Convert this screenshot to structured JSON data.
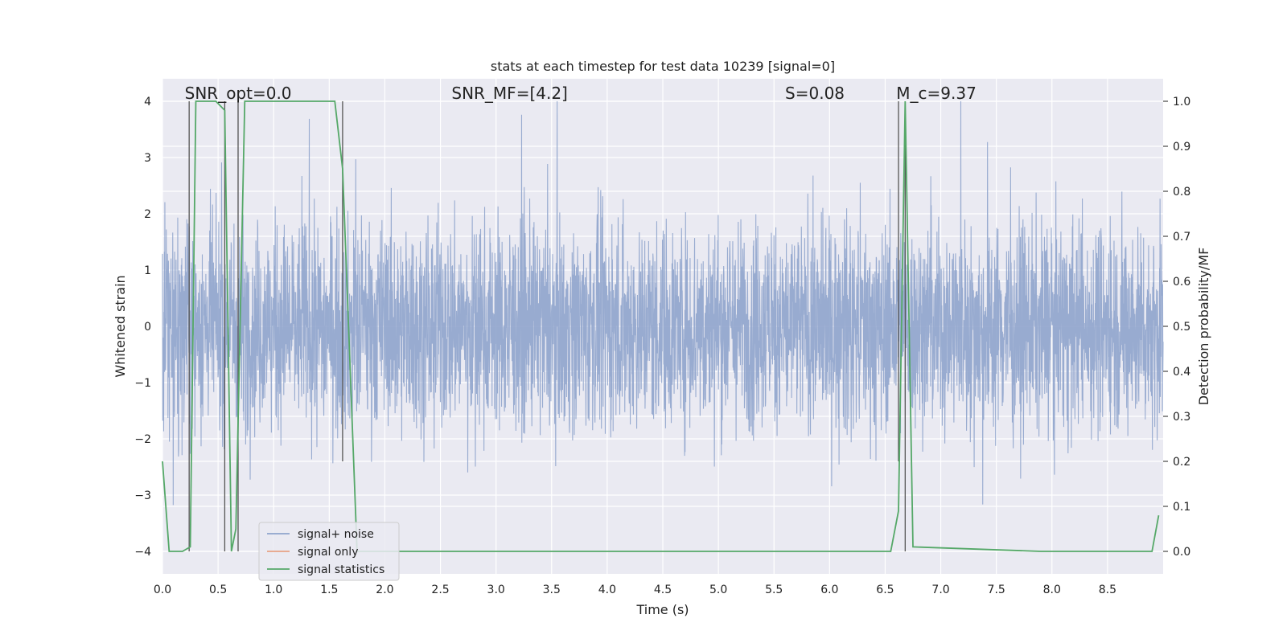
{
  "chart_data": {
    "type": "line",
    "title": "stats at each timestep for test data 10239 [signal=0]",
    "xlabel": "Time (s)",
    "ylabel": "Whitened strain",
    "ylabel_right": "Detection probability/MF",
    "xlim": [
      0,
      9.0
    ],
    "ylim": [
      -4.4,
      4.4
    ],
    "ylim_right": [
      -0.05,
      1.05
    ],
    "x_ticks": [
      0.0,
      0.5,
      1.0,
      1.5,
      2.0,
      2.5,
      3.0,
      3.5,
      4.0,
      4.5,
      5.0,
      5.5,
      6.0,
      6.5,
      7.0,
      7.5,
      8.0,
      8.5
    ],
    "x_tick_labels": [
      "0.0",
      "0.5",
      "1.0",
      "1.5",
      "2.0",
      "2.5",
      "3.0",
      "3.5",
      "4.0",
      "4.5",
      "5.0",
      "5.5",
      "6.0",
      "6.5",
      "7.0",
      "7.5",
      "8.0",
      "8.5"
    ],
    "y_ticks": [
      -4,
      -3,
      -2,
      -1,
      0,
      1,
      2,
      3,
      4
    ],
    "y_tick_labels": [
      "−4",
      "−3",
      "−2",
      "−1",
      "0",
      "1",
      "2",
      "3",
      "4"
    ],
    "y2_ticks": [
      0.0,
      0.1,
      0.2,
      0.3,
      0.4,
      0.5,
      0.6,
      0.7,
      0.8,
      0.9,
      1.0
    ],
    "y2_tick_labels": [
      "0.0",
      "0.1",
      "0.2",
      "0.3",
      "0.4",
      "0.5",
      "0.6",
      "0.7",
      "0.8",
      "0.9",
      "1.0"
    ],
    "annotations": [
      {
        "id": "snr-opt",
        "text": "SNR_opt=0.0",
        "x": 0.2,
        "y2": 1.005
      },
      {
        "id": "snr-mf",
        "text": "SNR_MF=[4.2]",
        "x": 2.6,
        "y2": 1.005
      },
      {
        "id": "s-stat",
        "text": "S=0.08",
        "x": 5.6,
        "y2": 1.005
      },
      {
        "id": "mc",
        "text": "M_c=9.37",
        "x": 6.6,
        "y2": 1.005
      }
    ],
    "series": [
      {
        "name": "signal+ noise",
        "color": "#8fa4cc",
        "style": "dense-noise",
        "typical_envelope": [
          -1.6,
          1.6
        ],
        "max_abs": 4.0
      },
      {
        "name": "signal only",
        "color": "#e8a285",
        "values": []
      },
      {
        "name": "signal statistics",
        "color": "#55a868",
        "axis": "right",
        "x": [
          0.0,
          0.06,
          0.18,
          0.25,
          0.3,
          0.48,
          0.52,
          0.56,
          0.62,
          0.66,
          0.74,
          1.55,
          1.62,
          1.75,
          6.55,
          6.62,
          6.68,
          6.75,
          7.9,
          8.9,
          8.96
        ],
        "y": [
          0.2,
          0.0,
          0.0,
          0.01,
          1.0,
          1.0,
          0.99,
          0.98,
          0.0,
          0.05,
          1.0,
          1.0,
          0.85,
          0.0,
          0.0,
          0.09,
          1.0,
          0.01,
          0.0,
          0.0,
          0.08
        ]
      }
    ],
    "event_markers": {
      "color": "#555555",
      "lines": [
        {
          "x": 0.24,
          "y2": [
            0.0,
            1.0
          ]
        },
        {
          "x": 0.56,
          "y2": [
            0.0,
            1.0
          ]
        },
        {
          "x": 0.68,
          "y2": [
            0.0,
            1.0
          ]
        },
        {
          "x": 1.62,
          "y2": [
            0.2,
            1.0
          ]
        },
        {
          "x": 6.62,
          "y2": [
            0.2,
            1.0
          ]
        },
        {
          "x": 6.68,
          "y2": [
            0.0,
            1.0
          ]
        }
      ]
    },
    "legend": {
      "position": "lower-left",
      "entries": [
        {
          "label": "signal+ noise",
          "color": "#8fa4cc"
        },
        {
          "label": "signal only",
          "color": "#e8a285"
        },
        {
          "label": "signal statistics",
          "color": "#55a868"
        }
      ]
    },
    "colors": {
      "plot_background": "#eaeaf2",
      "grid": "#ffffff"
    }
  }
}
